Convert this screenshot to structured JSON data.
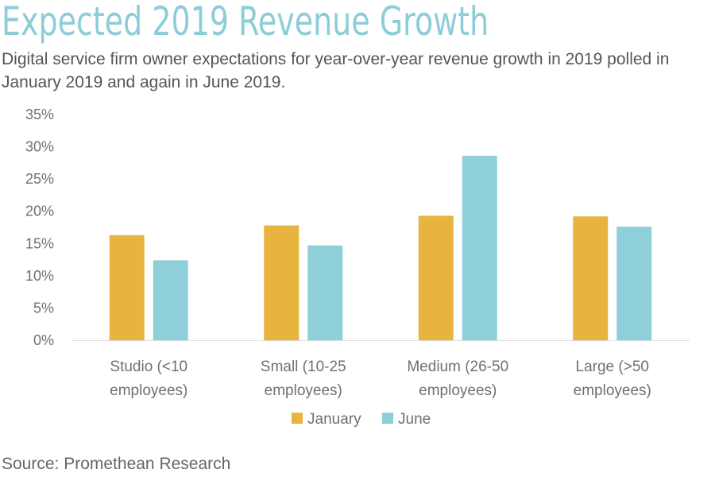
{
  "title": "Expected 2019 Revenue Growth",
  "subtitle": "Digital service firm owner expectations for year-over-year revenue growth in 2019 polled in January 2019 and again in June 2019.",
  "source": "Source: Promethean Research",
  "chart_data": {
    "type": "bar",
    "categories": [
      [
        "Studio (<10",
        "employees)"
      ],
      [
        "Small (10-25",
        "employees)"
      ],
      [
        "Medium (26-50",
        "employees)"
      ],
      [
        "Large (>50",
        "employees)"
      ]
    ],
    "series": [
      {
        "name": "January",
        "color": "#e8b440",
        "values": [
          16.3,
          17.8,
          19.3,
          19.2
        ]
      },
      {
        "name": "June",
        "color": "#8ecfda",
        "values": [
          12.4,
          14.7,
          28.6,
          17.6
        ]
      }
    ],
    "ylim": [
      0,
      35
    ],
    "yticks": [
      "0%",
      "5%",
      "10%",
      "15%",
      "20%",
      "25%",
      "30%",
      "35%"
    ],
    "legend_position": "bottom",
    "grid": false
  }
}
